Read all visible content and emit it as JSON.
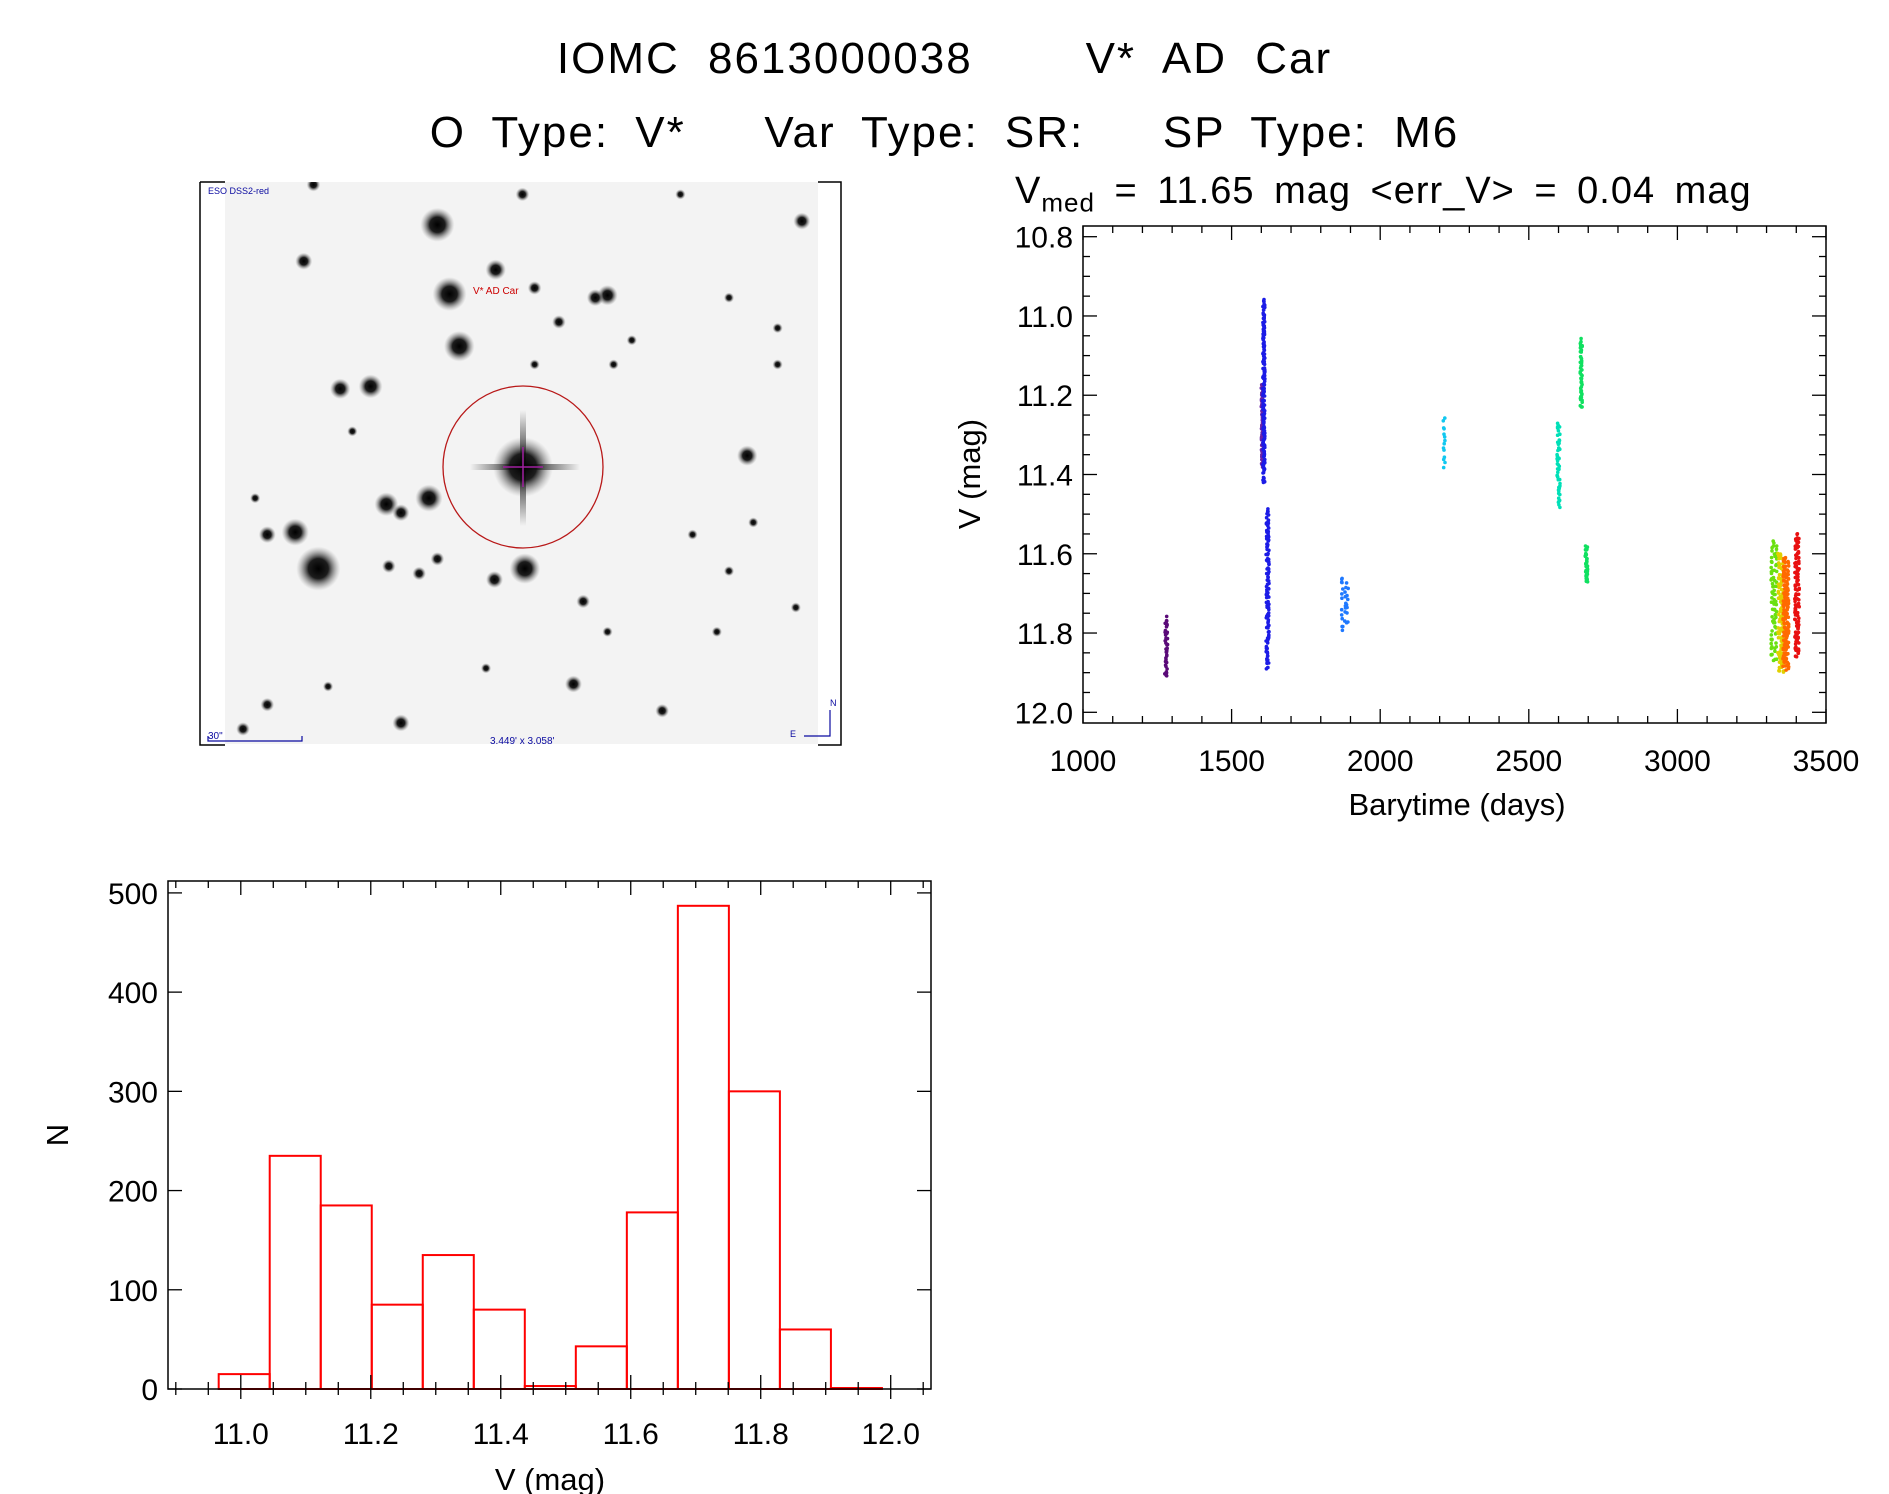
{
  "header": {
    "title_line1": "IOMC 8613000038    V* AD Car",
    "title_line2": "O Type: V*   Var Type: SR:   SP Type: M6",
    "vmed_prefix": "V",
    "vmed_sub": "med",
    "vmed_rest": " = 11.65 mag <err_V> = 0.04 mag"
  },
  "finder_image": {
    "survey_label": "ESO DSS2-red",
    "target_label": "V* AD Car",
    "scale_label": "30\"",
    "fov_label": "3.449' x 3.058'",
    "north_label": "N",
    "east_label": "E",
    "label_color": "#0a0aa0",
    "target_color": "#cc0000"
  },
  "chart_data": [
    {
      "type": "scatter",
      "title": "V_med = 11.65 mag <err_V> = 0.04 mag",
      "xlabel": "Barytime (days)",
      "ylabel": "V (mag)",
      "xlim": [
        1000,
        3500
      ],
      "ylim": [
        12.027,
        10.773
      ],
      "y_inverted": true,
      "xticks": [
        1000,
        1500,
        2000,
        2500,
        3000,
        3500
      ],
      "xtick_labels": [
        "1000",
        "1500",
        "2000",
        "2500",
        "3000",
        "3500"
      ],
      "yticks": [
        10.8,
        11.0,
        11.2,
        11.4,
        11.6,
        11.8,
        12.0
      ],
      "ytick_labels": [
        "10.8",
        "11.0",
        "11.2",
        "11.4",
        "11.6",
        "11.8",
        "12.0"
      ],
      "grid": false,
      "clusters": [
        {
          "t": [
            1275,
            1285
          ],
          "v": [
            11.76,
            11.91
          ],
          "n": 40,
          "color": "#5a0a78"
        },
        {
          "t": [
            1600,
            1606
          ],
          "v": [
            11.17,
            11.38
          ],
          "n": 60,
          "color": "#6a22a8"
        },
        {
          "t": [
            1605,
            1612
          ],
          "v": [
            10.96,
            11.42
          ],
          "n": 160,
          "color": "#1c1ce6"
        },
        {
          "t": [
            1616,
            1626
          ],
          "v": [
            11.49,
            11.89
          ],
          "n": 110,
          "color": "#1c1ce6"
        },
        {
          "t": [
            1870,
            1895
          ],
          "v": [
            11.66,
            11.79
          ],
          "n": 30,
          "color": "#1e78ff"
        },
        {
          "t": [
            2212,
            2218
          ],
          "v": [
            11.26,
            11.38
          ],
          "n": 14,
          "color": "#10c8f0"
        },
        {
          "t": [
            2595,
            2605
          ],
          "v": [
            11.27,
            11.48
          ],
          "n": 50,
          "color": "#00e0b8"
        },
        {
          "t": [
            2673,
            2680
          ],
          "v": [
            11.06,
            11.23
          ],
          "n": 50,
          "color": "#10e060"
        },
        {
          "t": [
            2690,
            2698
          ],
          "v": [
            11.58,
            11.67
          ],
          "n": 40,
          "color": "#10e060"
        },
        {
          "t": [
            3315,
            3335
          ],
          "v": [
            11.57,
            11.87
          ],
          "n": 80,
          "color": "#6ae010"
        },
        {
          "t": [
            3338,
            3358
          ],
          "v": [
            11.6,
            11.9
          ],
          "n": 120,
          "color": "#e0d000"
        },
        {
          "t": [
            3355,
            3375
          ],
          "v": [
            11.61,
            11.89
          ],
          "n": 150,
          "color": "#ff6a00"
        },
        {
          "t": [
            3395,
            3410
          ],
          "v": [
            11.55,
            11.86
          ],
          "n": 110,
          "color": "#e81010"
        }
      ]
    },
    {
      "type": "bar",
      "subtype": "histogram",
      "xlabel": "V (mag)",
      "ylabel": "N",
      "xlim": [
        10.888,
        12.062
      ],
      "ylim": [
        0,
        512
      ],
      "xticks": [
        11.0,
        11.2,
        11.4,
        11.6,
        11.8,
        12.0
      ],
      "xtick_labels": [
        "11.0",
        "11.2",
        "11.4",
        "11.6",
        "11.8",
        "12.0"
      ],
      "yticks": [
        0,
        100,
        200,
        300,
        400,
        500
      ],
      "ytick_labels": [
        "0",
        "100",
        "200",
        "300",
        "400",
        "500"
      ],
      "bin_start": 10.966,
      "bin_width": 0.0785,
      "values": [
        15,
        235,
        185,
        85,
        135,
        80,
        3,
        43,
        178,
        487,
        300,
        60,
        1
      ],
      "bar_color": "#ff0000",
      "grid": false
    }
  ]
}
